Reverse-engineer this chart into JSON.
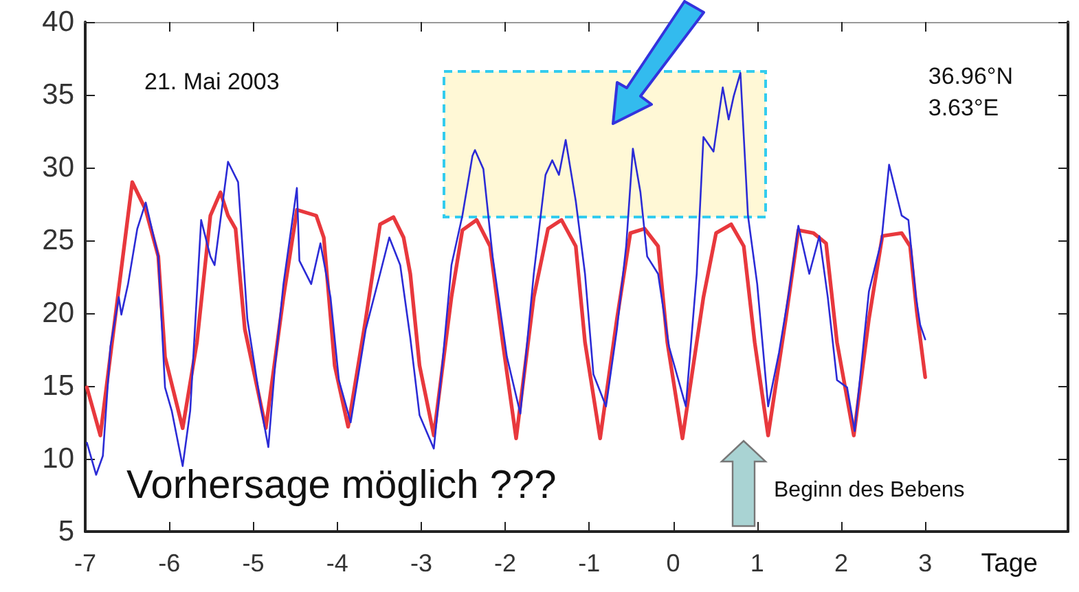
{
  "chart_data": {
    "type": "line",
    "xlabel": "Tage",
    "xlim": [
      -7,
      4.7
    ],
    "xticks": [
      -7,
      -6,
      -5,
      -4,
      -3,
      -2,
      -1,
      0,
      1,
      2,
      3
    ],
    "ylim": [
      5,
      40
    ],
    "yticks": [
      5,
      10,
      15,
      20,
      25,
      30,
      35,
      40
    ],
    "grid": false,
    "marker": "none",
    "line_style": "solid",
    "annotations": [
      "21. Mai 2003",
      "36.96°N\n3.63°E",
      "Vorhersage möglich ???",
      "Beginn des Bebens"
    ],
    "series": [
      {
        "color": "#e8383d",
        "x": [
          -6.98,
          -6.82,
          -6.44,
          -6.28,
          -6.13,
          -6.05,
          -5.84,
          -5.67,
          -5.51,
          -5.39,
          -5.3,
          -5.21,
          -5.1,
          -4.85,
          -4.64,
          -4.48,
          -4.25,
          -4.16,
          -4.03,
          -3.87,
          -3.66,
          -3.49,
          -3.33,
          -3.21,
          -3.13,
          -3.02,
          -2.85,
          -2.64,
          -2.51,
          -2.34,
          -2.18,
          -2.03,
          -1.87,
          -1.66,
          -1.49,
          -1.33,
          -1.16,
          -1.05,
          -0.87,
          -0.67,
          -0.51,
          -0.34,
          -0.18,
          -0.07,
          0.11,
          0.36,
          0.51,
          0.69,
          0.84,
          0.97,
          1.13,
          1.34,
          1.49,
          1.67,
          1.82,
          1.95,
          2.15,
          2.33,
          2.49,
          2.72,
          2.82,
          2.9,
          3.0
        ],
        "values": [
          14.9,
          11.6,
          29.0,
          27.1,
          23.9,
          17.0,
          12.1,
          18.0,
          26.7,
          28.3,
          26.7,
          25.8,
          18.9,
          12.1,
          21.1,
          27.1,
          26.7,
          25.2,
          16.4,
          12.2,
          19.6,
          26.1,
          26.6,
          25.2,
          22.7,
          16.4,
          11.6,
          21.1,
          25.7,
          26.4,
          24.6,
          18.0,
          11.4,
          21.1,
          25.8,
          26.4,
          24.6,
          18.0,
          11.4,
          19.6,
          25.5,
          25.8,
          24.6,
          18.0,
          11.4,
          21.1,
          25.5,
          26.1,
          24.6,
          18.0,
          11.6,
          19.6,
          25.7,
          25.5,
          24.8,
          18.0,
          11.6,
          19.6,
          25.3,
          25.5,
          24.6,
          20.1,
          15.6
        ]
      },
      {
        "color": "#2b2bd6",
        "x": [
          -6.98,
          -6.87,
          -6.79,
          -6.7,
          -6.6,
          -6.57,
          -6.49,
          -6.38,
          -6.28,
          -6.13,
          -6.05,
          -5.97,
          -5.84,
          -5.75,
          -5.62,
          -5.51,
          -5.46,
          -5.3,
          -5.18,
          -5.07,
          -4.9,
          -4.82,
          -4.74,
          -4.64,
          -4.48,
          -4.45,
          -4.31,
          -4.2,
          -4.08,
          -3.98,
          -3.84,
          -3.66,
          -3.49,
          -3.38,
          -3.25,
          -3.13,
          -3.02,
          -2.85,
          -2.75,
          -2.64,
          -2.51,
          -2.39,
          -2.36,
          -2.26,
          -2.15,
          -1.98,
          -1.82,
          -1.66,
          -1.52,
          -1.44,
          -1.36,
          -1.28,
          -1.16,
          -1.05,
          -0.95,
          -0.8,
          -0.67,
          -0.56,
          -0.48,
          -0.39,
          -0.31,
          -0.18,
          -0.05,
          0.15,
          0.28,
          0.36,
          0.48,
          0.59,
          0.66,
          0.72,
          0.8,
          0.89,
          1.0,
          1.13,
          1.26,
          1.38,
          1.49,
          1.62,
          1.74,
          1.84,
          1.95,
          2.07,
          2.16,
          2.33,
          2.48,
          2.57,
          2.72,
          2.8,
          2.89,
          2.94,
          3.0
        ],
        "values": [
          11.1,
          8.9,
          10.2,
          17.7,
          21.1,
          19.9,
          22.0,
          25.8,
          27.6,
          23.9,
          14.9,
          13.3,
          9.5,
          13.3,
          26.4,
          23.9,
          23.3,
          30.4,
          29.0,
          19.6,
          13.3,
          10.8,
          16.4,
          22.0,
          28.6,
          23.6,
          22.0,
          24.8,
          21.1,
          15.4,
          12.5,
          18.9,
          22.7,
          25.2,
          23.3,
          18.3,
          13.0,
          10.7,
          16.4,
          23.3,
          26.7,
          30.8,
          31.2,
          29.9,
          23.9,
          17.0,
          13.1,
          22.7,
          29.5,
          30.5,
          29.5,
          31.9,
          27.7,
          22.7,
          15.8,
          13.6,
          18.9,
          24.6,
          31.3,
          28.3,
          23.9,
          22.7,
          17.7,
          13.6,
          22.7,
          32.1,
          31.1,
          35.5,
          33.3,
          34.9,
          36.5,
          26.7,
          22.0,
          13.6,
          17.3,
          21.5,
          26.0,
          22.7,
          25.3,
          21.1,
          15.4,
          14.9,
          11.9,
          21.5,
          25.0,
          30.2,
          26.7,
          26.4,
          21.1,
          19.2,
          18.2
        ]
      }
    ]
  }
}
